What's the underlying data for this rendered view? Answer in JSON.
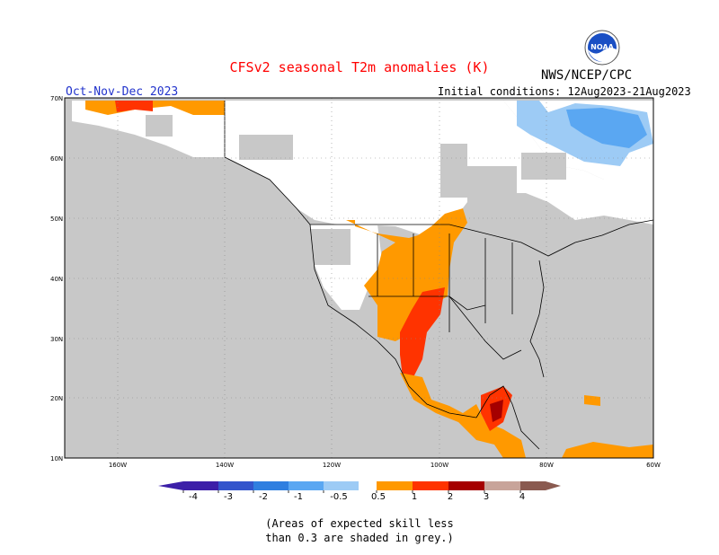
{
  "header": {
    "title": "CFSv2 seasonal T2m anomalies (K)",
    "agency": "NWS/NCEP/CPC",
    "season": "Oct-Nov-Dec 2023",
    "initial_conditions": "Initial conditions: 12Aug2023-21Aug2023",
    "logo_text": "NOAA"
  },
  "map": {
    "lat_labels": [
      "70N",
      "60N",
      "50N",
      "40N",
      "30N",
      "20N",
      "10N"
    ],
    "lon_labels": [
      "160W",
      "140W",
      "120W",
      "100W",
      "80W",
      "60W"
    ],
    "no_skill_color": "#c8c8c8",
    "land_white": "#ffffff"
  },
  "legend": {
    "labels": [
      "-4",
      "-3",
      "-2",
      "-1",
      "-0.5",
      "0.5",
      "1",
      "2",
      "3",
      "4"
    ],
    "colors": [
      "#3c1fa8",
      "#3355cc",
      "#2f7fe0",
      "#5aa7f2",
      "#9dcbf5",
      "#ffffff",
      "#ff9900",
      "#ff3300",
      "#a50000",
      "#c8a49a",
      "#8a5a50"
    ]
  },
  "notes": {
    "line1": "(Areas of expected skill less",
    "line2": "than 0.3 are shaded in grey.)"
  }
}
